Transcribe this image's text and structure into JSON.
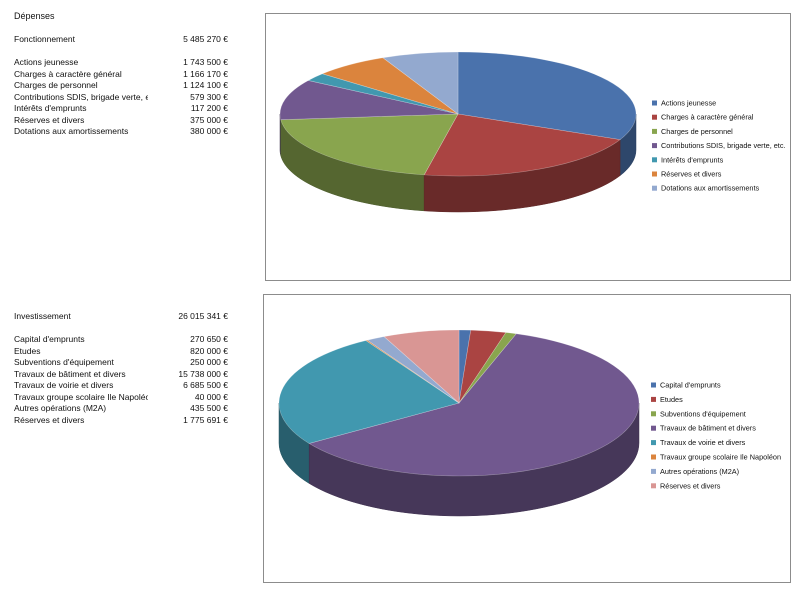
{
  "sheet_title": "Dépenses",
  "tables": [
    {
      "total_label": "Fonctionnement",
      "total_value": "5 485 270 €",
      "rows": [
        {
          "label": "Actions jeunesse",
          "value": "1 743 500 €"
        },
        {
          "label": "Charges à caractère général",
          "value": "1 166 170 €"
        },
        {
          "label": "Charges de personnel",
          "value": "1 124 100 €"
        },
        {
          "label": "Contributions SDIS, brigade verte, etc.",
          "value": "579 300 €"
        },
        {
          "label": "Intérêts d'emprunts",
          "value": "117 200 €"
        },
        {
          "label": "Réserves et divers",
          "value": "375 000 €"
        },
        {
          "label": "Dotations aux amortissements",
          "value": "380 000 €"
        }
      ]
    },
    {
      "total_label": "Investissement",
      "total_value": "26 015 341 €",
      "rows": [
        {
          "label": "Capital d'emprunts",
          "value": "270 650 €"
        },
        {
          "label": "Etudes",
          "value": "820 000 €"
        },
        {
          "label": "Subventions d'équipement",
          "value": "250 000 €"
        },
        {
          "label": "Travaux de bâtiment et divers",
          "value": "15 738 000 €"
        },
        {
          "label": "Travaux de voirie et divers",
          "value": "6 685 500 €"
        },
        {
          "label": "Travaux groupe scolaire Ile Napoléon",
          "value": "40 000 €"
        },
        {
          "label": "Autres opérations (M2A)",
          "value": "435 500 €"
        },
        {
          "label": "Réserves et divers",
          "value": "1 775 691 €"
        }
      ]
    }
  ],
  "chart_data": [
    {
      "type": "pie",
      "title": "",
      "legend_position": "right",
      "categories": [
        "Actions jeunesse",
        "Charges à caractère général",
        "Charges de personnel",
        "Contributions SDIS, brigade verte, etc.",
        "Intérêts d'emprunts",
        "Réserves et divers",
        "Dotations aux amortissements"
      ],
      "values": [
        1743500,
        1166170,
        1124100,
        579300,
        117200,
        375000,
        380000
      ],
      "colors": [
        "#4a72ac",
        "#aa4442",
        "#89a54e",
        "#71588f",
        "#4198af",
        "#db843d",
        "#93a9cf"
      ]
    },
    {
      "type": "pie",
      "title": "",
      "legend_position": "right",
      "categories": [
        "Capital d'emprunts",
        "Etudes",
        "Subventions d'équipement",
        "Travaux de bâtiment et divers",
        "Travaux de voirie et divers",
        "Travaux groupe scolaire Ile Napoléon",
        "Autres opérations (M2A)",
        "Réserves et divers"
      ],
      "values": [
        270650,
        820000,
        250000,
        15738000,
        6685500,
        40000,
        435500,
        1775691
      ],
      "colors": [
        "#4a72ac",
        "#aa4442",
        "#89a54e",
        "#71588f",
        "#4198af",
        "#db843d",
        "#93a9cf",
        "#d99694"
      ]
    }
  ]
}
